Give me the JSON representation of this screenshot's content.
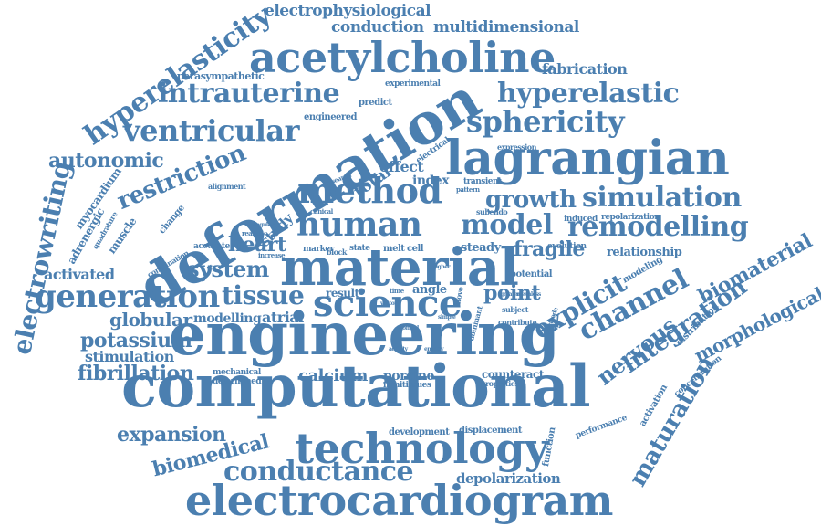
{
  "word_cloud": {
    "color": "#4b7fb0",
    "words": [
      "computational",
      "engineering",
      "deformation",
      "material",
      "electrocardiogram",
      "technology",
      "acetylcholine",
      "lagrangian",
      "science",
      "method",
      "human",
      "hyperelastic",
      "intrauterine",
      "ventricular",
      "sphericity",
      "generation",
      "tissue",
      "simulation",
      "remodelling",
      "model",
      "growth",
      "conductance",
      "explicit",
      "channel",
      "integration",
      "maturation",
      "fibrillation",
      "potassium",
      "biomaterial",
      "morphological",
      "electrowriting",
      "hyperelasticity",
      "nervous",
      "restriction",
      "autonomic",
      "biomedical",
      "expansion",
      "globular",
      "system",
      "heart",
      "point",
      "fragile",
      "calcium",
      "stimulation",
      "activated",
      "atrial",
      "modelling",
      "depolarization",
      "electrophysiological",
      "conduction",
      "multidimensional",
      "fabrication",
      "parasympathetic",
      "total",
      "effect",
      "index",
      "study",
      "steady",
      "relationship",
      "porcine",
      "counteract",
      "repolarization",
      "evolution",
      "potential",
      "result",
      "angle",
      "cell",
      "melt",
      "state",
      "block",
      "marker",
      "myocardium",
      "adrenergic",
      "muscle",
      "change",
      "quadrature",
      "combination",
      "accurate",
      "realistic",
      "increase",
      "predict",
      "engineered",
      "experimental",
      "alignment",
      "research",
      "clinical",
      "electrical",
      "transient",
      "pattern",
      "subendo",
      "induced",
      "expression",
      "activation",
      "distribution",
      "concentration",
      "performance",
      "function",
      "displacement",
      "development",
      "mechanical",
      "determined",
      "minitissues",
      "properties",
      "contribute",
      "subject",
      "modeling",
      "dominant",
      "activity",
      "employ",
      "time",
      "simple",
      "move",
      "higher",
      "greater",
      "meshless",
      "electrode",
      "angular",
      "control",
      "vector"
    ]
  }
}
